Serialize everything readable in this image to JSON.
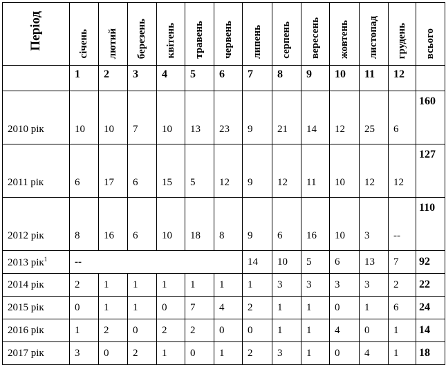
{
  "header": {
    "period": "Період",
    "months": [
      "січень",
      "лютий",
      "березень",
      "квітень",
      "травень",
      "червень",
      "липень",
      "серпень",
      "вересень",
      "жовтень",
      "листопад",
      "грудень"
    ],
    "total": "всього"
  },
  "numbers": [
    "1",
    "2",
    "3",
    "4",
    "5",
    "6",
    "7",
    "8",
    "9",
    "10",
    "11",
    "12"
  ],
  "rows": [
    {
      "label": "2010 рік",
      "values": [
        "10",
        "10",
        "7",
        "10",
        "13",
        "23",
        "9",
        "21",
        "14",
        "12",
        "25",
        "6"
      ],
      "total": "160"
    },
    {
      "label": "2011 рік",
      "values": [
        "6",
        "17",
        "6",
        "15",
        "5",
        "12",
        "9",
        "12",
        "11",
        "10",
        "12",
        "12"
      ],
      "total": "127"
    },
    {
      "label": "2012 рік",
      "values": [
        "8",
        "16",
        "6",
        "10",
        "18",
        "8",
        "9",
        "6",
        "16",
        "10",
        "3",
        "--"
      ],
      "total": "110"
    }
  ],
  "row2013": {
    "label": "2013 рік",
    "footnote": "1",
    "merged": "--",
    "values": [
      "14",
      "10",
      "5",
      "6",
      "13",
      "7"
    ],
    "total": "92"
  },
  "rows2": [
    {
      "label": "2014 рік",
      "values": [
        "2",
        "1",
        "1",
        "1",
        "1",
        "1",
        "1",
        "3",
        "3",
        "3",
        "3",
        "2"
      ],
      "total": "22"
    },
    {
      "label": "2015 рік",
      "values": [
        "0",
        "1",
        "1",
        "0",
        "7",
        "4",
        "2",
        "1",
        "1",
        "0",
        "1",
        "6"
      ],
      "total": "24"
    },
    {
      "label": "2016 рік",
      "values": [
        "1",
        "2",
        "0",
        "2",
        "2",
        "0",
        "0",
        "1",
        "1",
        "4",
        "0",
        "1"
      ],
      "total": "14"
    },
    {
      "label": "2017 рік",
      "values": [
        "3",
        "0",
        "2",
        "1",
        "0",
        "1",
        "2",
        "3",
        "1",
        "0",
        "4",
        "1"
      ],
      "total": "18"
    }
  ]
}
